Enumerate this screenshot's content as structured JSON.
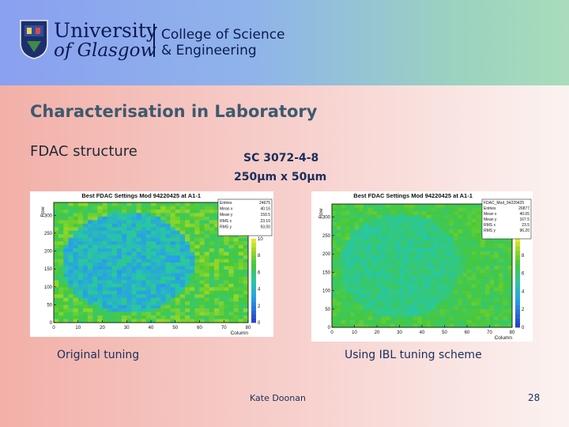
{
  "header": {
    "university_line1": "University",
    "university_line2": "of Glasgow",
    "college_line1": "College of Science",
    "college_line2": "& Engineering"
  },
  "slide": {
    "title": "Characterisation in Laboratory",
    "subtitle": "FDAC structure",
    "sensor": "SC 3072-4-8",
    "pixel_size": "250µm x 50µm",
    "label_left": "Original tuning",
    "label_right": "Using IBL tuning scheme",
    "author": "Kate Doonan",
    "page_number": "28"
  },
  "colors": {
    "title": "#3d5a6e",
    "text": "#1a2e5c",
    "brand": "#0c1a4e"
  },
  "chart_data": [
    {
      "type": "heatmap",
      "title": "Best FDAC Settings Mod 94220425 at A1-1",
      "xlabel": "Column",
      "ylabel": "Row",
      "xlim": [
        0,
        80
      ],
      "ylim": [
        0,
        336
      ],
      "x_ticks": [
        "0",
        "10",
        "20",
        "30",
        "40",
        "50",
        "60",
        "70",
        "80"
      ],
      "y_ticks": [
        "0",
        "50",
        "100",
        "150",
        "200",
        "250",
        "300"
      ],
      "z_range": [
        0,
        10
      ],
      "z_ticks": [
        "0",
        "2",
        "4",
        "6",
        "8",
        "10"
      ],
      "stats": [
        {
          "label": "Entries",
          "value": "24675"
        },
        {
          "label": "Mean x",
          "value": "40.16"
        },
        {
          "label": "Mean y",
          "value": "159.5"
        },
        {
          "label": "RMS x",
          "value": "23.10"
        },
        {
          "label": "RMS y",
          "value": "93.00"
        }
      ]
    },
    {
      "type": "heatmap",
      "title": "Best FDAC Settings Mod 94220425 at A1-1",
      "xlabel": "Column",
      "ylabel": "Row",
      "xlim": [
        0,
        80
      ],
      "ylim": [
        0,
        336
      ],
      "x_ticks": [
        "0",
        "10",
        "20",
        "30",
        "40",
        "50",
        "60",
        "70",
        "80"
      ],
      "y_ticks": [
        "0",
        "50",
        "100",
        "150",
        "200",
        "250",
        "300"
      ],
      "z_range": [
        0,
        10
      ],
      "z_ticks": [
        "0",
        "2",
        "4",
        "6",
        "8",
        "10"
      ],
      "stats_name": "FDAC_Mod_94220425",
      "stats": [
        {
          "label": "Entries",
          "value": "26877"
        },
        {
          "label": "Mean x",
          "value": "40.05"
        },
        {
          "label": "Mean y",
          "value": "167.5"
        },
        {
          "label": "RMS x",
          "value": "23.5"
        },
        {
          "label": "RMS y",
          "value": "96.20"
        }
      ]
    }
  ]
}
